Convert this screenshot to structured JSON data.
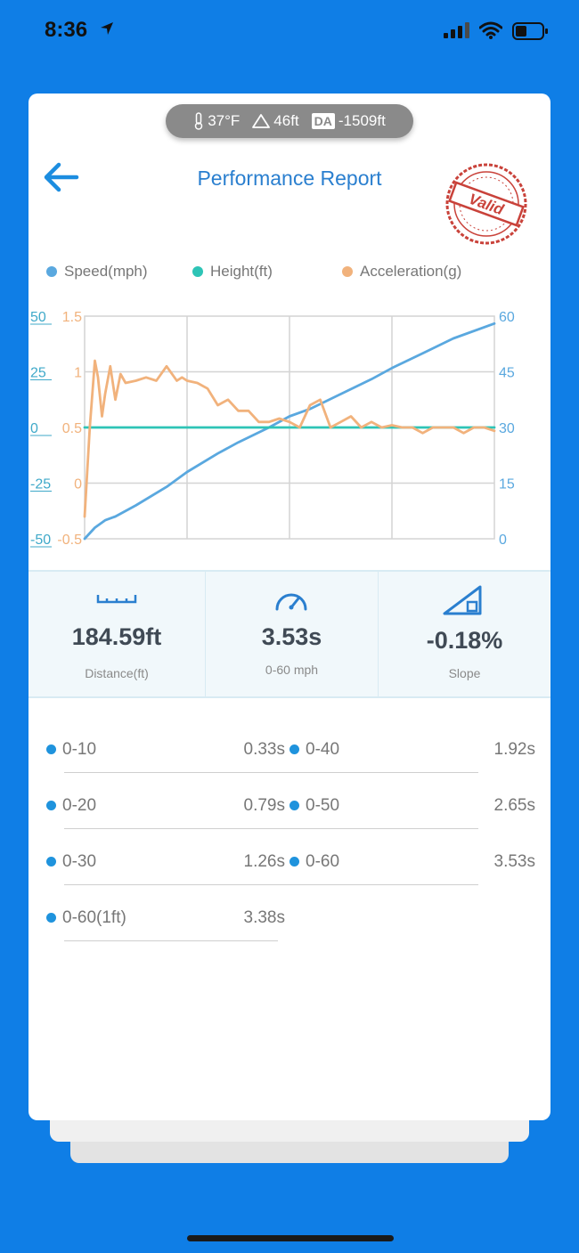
{
  "status_bar": {
    "time": "8:36"
  },
  "env": {
    "temperature": "37°F",
    "altitude": "46ft",
    "da_label": "DA",
    "density_altitude": "-1509ft"
  },
  "header": {
    "title": "Performance Report",
    "stamp_text": "Valid"
  },
  "legend": [
    {
      "label": "Speed(mph)",
      "color": "#5aa8df"
    },
    {
      "label": "Height(ft)",
      "color": "#2ec4b6"
    },
    {
      "label": "Acceleration(g)",
      "color": "#f1b27c"
    }
  ],
  "chart_data": {
    "type": "line",
    "x_range": [
      0,
      4
    ],
    "axes": {
      "height_ticks": [
        "50",
        "25",
        "0",
        "-25",
        "-50"
      ],
      "accel_ticks": [
        "1.5",
        "1",
        "0.5",
        "0",
        "-0.5"
      ],
      "speed_ticks": [
        "60",
        "45",
        "30",
        "15",
        "0"
      ],
      "height_range": [
        -50,
        50
      ],
      "accel_range": [
        -0.5,
        1.5
      ],
      "speed_range": [
        0,
        60
      ]
    },
    "series": [
      {
        "name": "Speed(mph)",
        "axis": "speed",
        "color": "#5aa8df",
        "x": [
          0,
          0.1,
          0.2,
          0.3,
          0.5,
          0.8,
          1.0,
          1.3,
          1.5,
          1.8,
          2.0,
          2.2,
          2.5,
          2.8,
          3.0,
          3.3,
          3.6,
          4.0
        ],
        "values": [
          0,
          3,
          5,
          6,
          9,
          14,
          18,
          23,
          26,
          30,
          33,
          35,
          39,
          43,
          46,
          50,
          54,
          58
        ]
      },
      {
        "name": "Height(ft)",
        "axis": "height",
        "color": "#2ec4b6",
        "x": [
          0,
          0.5,
          1.0,
          1.5,
          2.0,
          2.5,
          3.0,
          3.5,
          4.0
        ],
        "values": [
          0,
          0,
          0,
          0,
          0,
          0,
          0,
          0,
          0
        ]
      },
      {
        "name": "Acceleration(g)",
        "axis": "accel",
        "color": "#f1b27c",
        "x": [
          0,
          0.05,
          0.1,
          0.13,
          0.17,
          0.2,
          0.25,
          0.3,
          0.35,
          0.4,
          0.5,
          0.6,
          0.7,
          0.8,
          0.9,
          0.95,
          1.0,
          1.1,
          1.2,
          1.3,
          1.4,
          1.5,
          1.6,
          1.7,
          1.8,
          1.9,
          2.0,
          2.1,
          2.2,
          2.3,
          2.4,
          2.5,
          2.6,
          2.7,
          2.8,
          2.9,
          3.0,
          3.1,
          3.2,
          3.3,
          3.4,
          3.5,
          3.6,
          3.7,
          3.8,
          3.9,
          4.0
        ],
        "values": [
          -0.3,
          0.5,
          1.1,
          0.95,
          0.6,
          0.8,
          1.05,
          0.75,
          0.98,
          0.9,
          0.92,
          0.95,
          0.92,
          1.05,
          0.92,
          0.95,
          0.92,
          0.9,
          0.85,
          0.7,
          0.75,
          0.65,
          0.65,
          0.55,
          0.55,
          0.58,
          0.55,
          0.5,
          0.7,
          0.75,
          0.5,
          0.55,
          0.6,
          0.5,
          0.55,
          0.5,
          0.52,
          0.5,
          0.5,
          0.45,
          0.5,
          0.5,
          0.5,
          0.45,
          0.5,
          0.5,
          0.47
        ]
      }
    ]
  },
  "stats": [
    {
      "value": "184.59ft",
      "label": "Distance(ft)",
      "icon": "ruler-icon"
    },
    {
      "value": "3.53s",
      "label": "0-60 mph",
      "icon": "speedometer-icon"
    },
    {
      "value": "-0.18%",
      "label": "Slope",
      "icon": "slope-icon"
    }
  ],
  "times": [
    {
      "label": "0-10",
      "value": "0.33s"
    },
    {
      "label": "0-40",
      "value": "1.92s"
    },
    {
      "label": "0-20",
      "value": "0.79s"
    },
    {
      "label": "0-50",
      "value": "2.65s"
    },
    {
      "label": "0-30",
      "value": "1.26s"
    },
    {
      "label": "0-60",
      "value": "3.53s"
    },
    {
      "label": "0-60(1ft)",
      "value": "3.38s"
    }
  ]
}
